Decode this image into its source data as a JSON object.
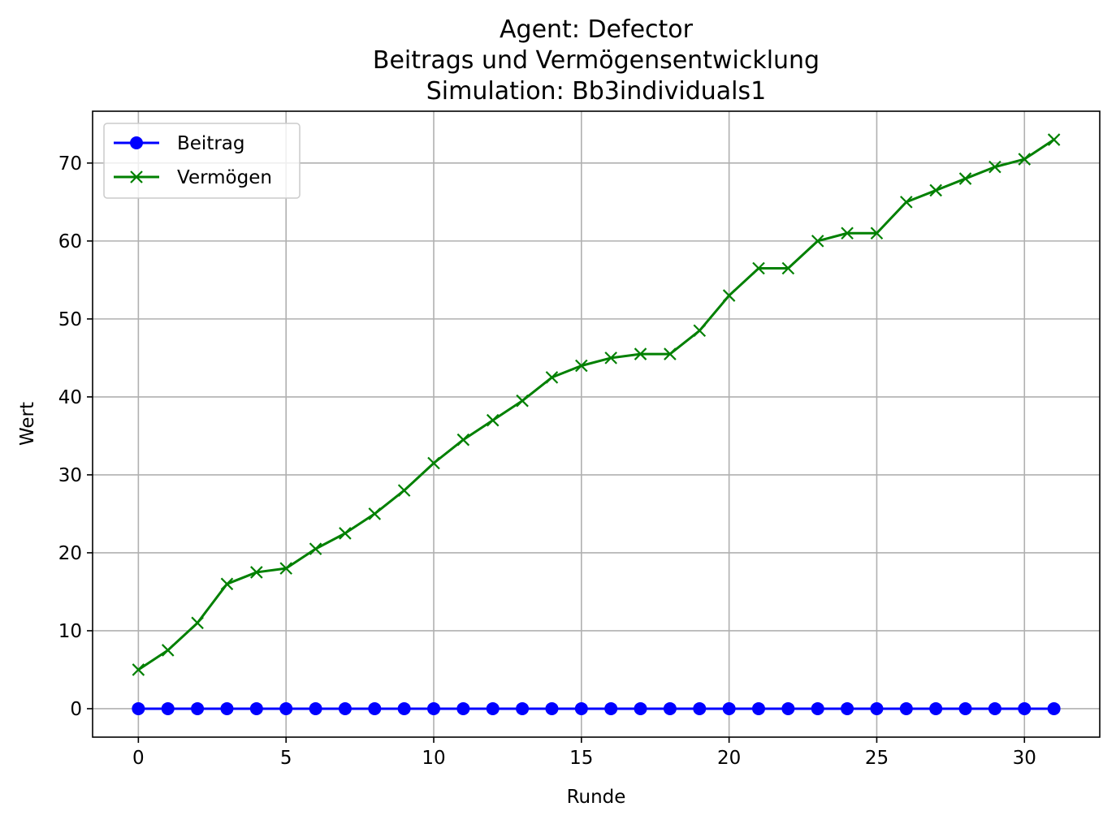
{
  "chart_data": {
    "type": "line",
    "title": "Agent: Defector",
    "subtitle_lines": [
      "Beitrags und Vermögensentwicklung",
      "Simulation: Bb3individuals1"
    ],
    "xlabel": "Runde",
    "ylabel": "Wert",
    "xlim": [
      -1.55,
      32.55
    ],
    "ylim": [
      -3.65,
      76.65
    ],
    "xticks": [
      0,
      5,
      10,
      15,
      20,
      25,
      30
    ],
    "yticks": [
      0,
      10,
      20,
      30,
      40,
      50,
      60,
      70
    ],
    "grid": true,
    "legend_position": "upper-left",
    "x": [
      0,
      1,
      2,
      3,
      4,
      5,
      6,
      7,
      8,
      9,
      10,
      11,
      12,
      13,
      14,
      15,
      16,
      17,
      18,
      19,
      20,
      21,
      22,
      23,
      24,
      25,
      26,
      27,
      28,
      29,
      30,
      31
    ],
    "series": [
      {
        "name": "Beitrag",
        "color": "#0000ff",
        "marker": "circle",
        "values": [
          0,
          0,
          0,
          0,
          0,
          0,
          0,
          0,
          0,
          0,
          0,
          0,
          0,
          0,
          0,
          0,
          0,
          0,
          0,
          0,
          0,
          0,
          0,
          0,
          0,
          0,
          0,
          0,
          0,
          0,
          0,
          0
        ]
      },
      {
        "name": "Vermögen",
        "color": "#008000",
        "marker": "x",
        "values": [
          5,
          7.5,
          11,
          16,
          17.5,
          18,
          20.5,
          22.5,
          25,
          28,
          31.5,
          34.5,
          37,
          39.5,
          42.5,
          44,
          45,
          45.5,
          45.5,
          48.5,
          53,
          56.5,
          56.5,
          60,
          61,
          61,
          65,
          66.5,
          68,
          69.5,
          70.5,
          73
        ]
      }
    ]
  }
}
